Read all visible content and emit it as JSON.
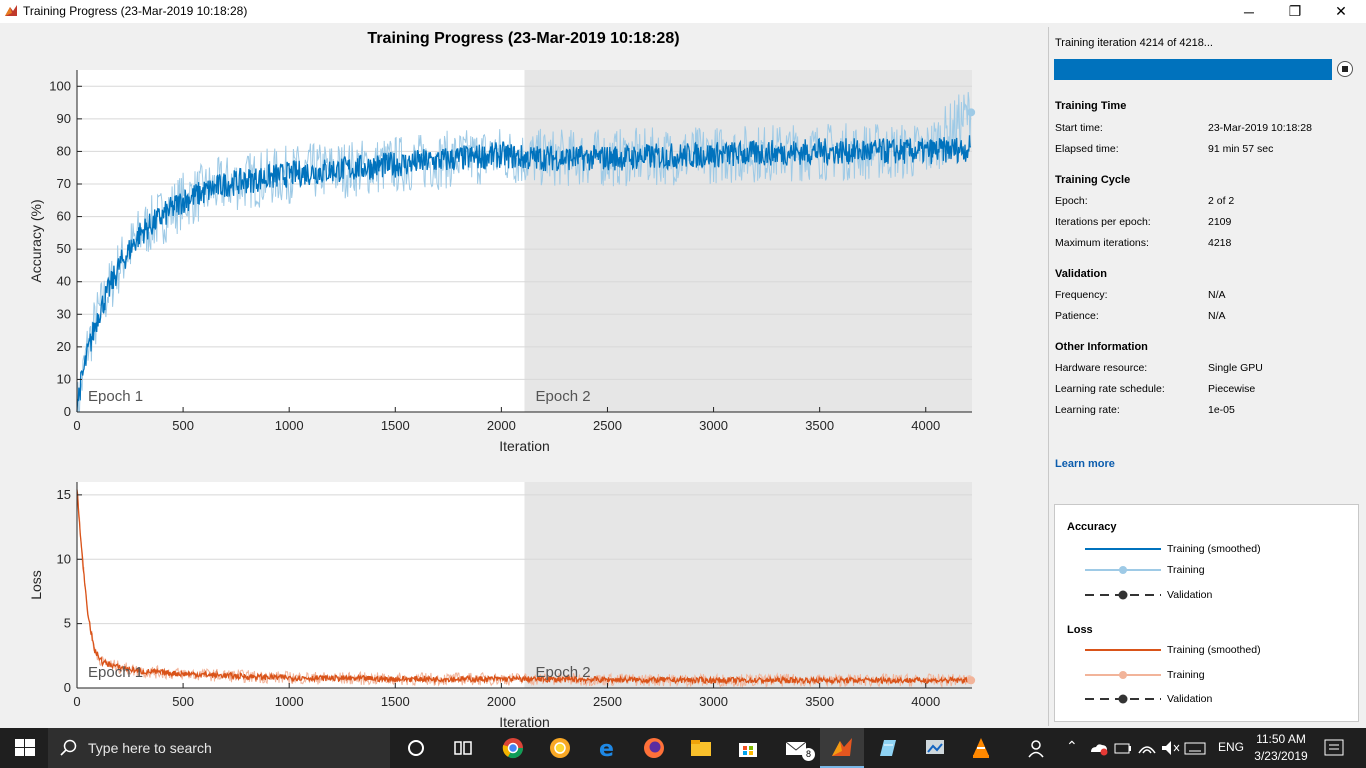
{
  "window": {
    "title": "Training Progress (23-Mar-2019 10:18:28)",
    "minimize": "─",
    "restore": "❐",
    "close": "✕"
  },
  "figure": {
    "title": "Training Progress (23-Mar-2019 10:18:28)"
  },
  "colors": {
    "accuracy": "#0072bd",
    "accuracy_light": "#9ecae6",
    "loss": "#d95319",
    "loss_light": "#f2b49a",
    "epoch2_bg": "#e6e6e6",
    "progress": "#0072bd"
  },
  "chart_data": [
    {
      "type": "line",
      "title": "",
      "xlabel": "Iteration",
      "ylabel": "Accuracy (%)",
      "xlim": [
        0,
        4218
      ],
      "ylim": [
        0,
        105
      ],
      "xticks": [
        0,
        500,
        1000,
        1500,
        2000,
        2500,
        3000,
        3500,
        4000
      ],
      "yticks": [
        0,
        10,
        20,
        30,
        40,
        50,
        60,
        70,
        80,
        90,
        100
      ],
      "grid": true,
      "epochs": [
        {
          "label": "Epoch 1",
          "start": 0,
          "end": 2109
        },
        {
          "label": "Epoch 2",
          "start": 2109,
          "end": 4218
        }
      ],
      "series": [
        {
          "name": "Training (smoothed)",
          "x": [
            0,
            50,
            100,
            200,
            300,
            400,
            500,
            700,
            1000,
            1500,
            2000,
            2109,
            2500,
            3000,
            3500,
            4000,
            4214
          ],
          "y": [
            3,
            18,
            30,
            45,
            55,
            60,
            65,
            70,
            73,
            76,
            79,
            78,
            78,
            79,
            80,
            80,
            81
          ]
        },
        {
          "name": "Training",
          "x": [
            0,
            50,
            100,
            200,
            300,
            400,
            500,
            700,
            1000,
            1500,
            2000,
            2109,
            2500,
            3000,
            3500,
            4000,
            4214
          ],
          "y": [
            0,
            20,
            30,
            45,
            55,
            60,
            65,
            70,
            73,
            76,
            79,
            78,
            78,
            79,
            80,
            80,
            92
          ],
          "spread": 9
        }
      ]
    },
    {
      "type": "line",
      "title": "",
      "xlabel": "Iteration",
      "ylabel": "Loss",
      "xlim": [
        0,
        4218
      ],
      "ylim": [
        0,
        16
      ],
      "xticks": [
        0,
        500,
        1000,
        1500,
        2000,
        2500,
        3000,
        3500,
        4000
      ],
      "yticks": [
        0,
        5,
        10,
        15
      ],
      "grid": true,
      "epochs": [
        {
          "label": "Epoch 1",
          "start": 0,
          "end": 2109
        },
        {
          "label": "Epoch 2",
          "start": 2109,
          "end": 4218
        }
      ],
      "series": [
        {
          "name": "Training (smoothed)",
          "x": [
            0,
            20,
            50,
            80,
            120,
            200,
            300,
            500,
            800,
            1000,
            1500,
            2000,
            2500,
            3000,
            3500,
            4000,
            4214
          ],
          "y": [
            15.5,
            11,
            6,
            3,
            2,
            1.6,
            1.3,
            1.1,
            0.9,
            0.8,
            0.7,
            0.7,
            0.65,
            0.6,
            0.6,
            0.6,
            0.6
          ]
        },
        {
          "name": "Training",
          "x": [
            0,
            20,
            50,
            80,
            120,
            200,
            300,
            500,
            800,
            1000,
            1500,
            2000,
            2500,
            3000,
            3500,
            4000,
            4214
          ],
          "y": [
            16,
            11,
            6,
            3,
            2,
            1.6,
            1.3,
            1.1,
            0.9,
            0.8,
            0.7,
            0.7,
            0.65,
            0.6,
            0.6,
            0.6,
            0.6
          ],
          "spread": 0.5
        }
      ]
    }
  ],
  "side": {
    "iteration_text": "Training iteration 4214 of 4218...",
    "progress": 0.999,
    "training_time": {
      "heading": "Training Time",
      "rows": [
        {
          "label": "Start time:",
          "value": "23-Mar-2019 10:18:28"
        },
        {
          "label": "Elapsed time:",
          "value": "91 min 57 sec"
        }
      ]
    },
    "training_cycle": {
      "heading": "Training Cycle",
      "rows": [
        {
          "label": "Epoch:",
          "value": "2 of 2"
        },
        {
          "label": "Iterations per epoch:",
          "value": "2109"
        },
        {
          "label": "Maximum iterations:",
          "value": "4218"
        }
      ]
    },
    "validation": {
      "heading": "Validation",
      "rows": [
        {
          "label": "Frequency:",
          "value": "N/A"
        },
        {
          "label": "Patience:",
          "value": "N/A"
        }
      ]
    },
    "other": {
      "heading": "Other Information",
      "rows": [
        {
          "label": "Hardware resource:",
          "value": "Single GPU"
        },
        {
          "label": "Learning rate schedule:",
          "value": "Piecewise"
        },
        {
          "label": "Learning rate:",
          "value": "1e-05"
        }
      ]
    },
    "learn_more": "Learn more"
  },
  "legend": {
    "accuracy_heading": "Accuracy",
    "loss_heading": "Loss",
    "smoothed": "Training (smoothed)",
    "training": "Training",
    "validation": "Validation"
  },
  "taskbar": {
    "search_placeholder": "Type here to search",
    "mail_badge": "8",
    "language": "ENG",
    "time": "11:50 AM",
    "date": "3/23/2019"
  }
}
